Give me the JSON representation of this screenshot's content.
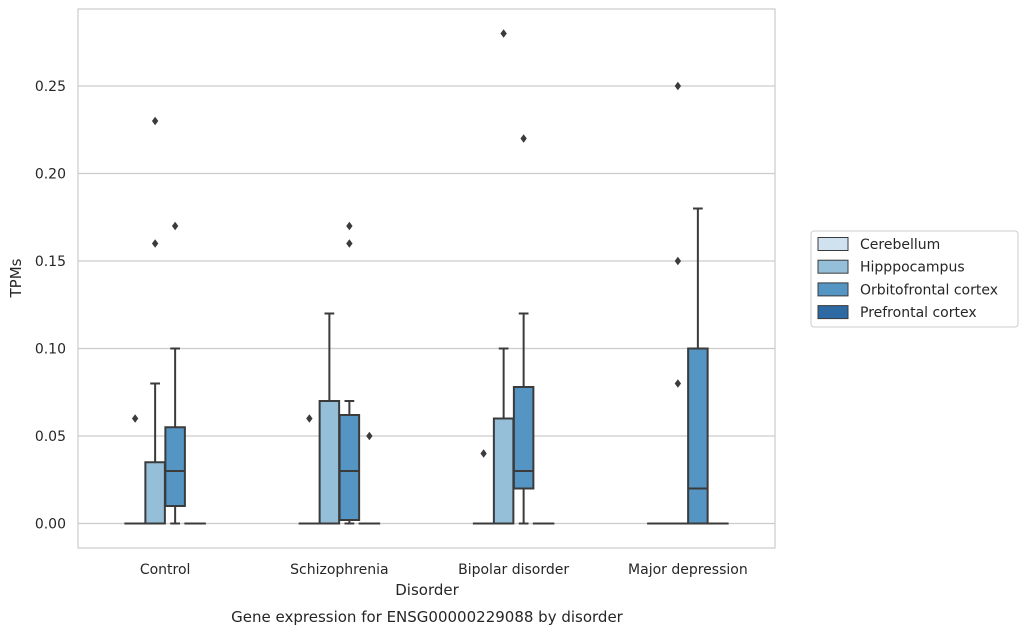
{
  "chart_data": {
    "type": "box",
    "xlabel": "Disorder",
    "ylabel": "TPMs",
    "caption": "Gene expression for ENSG00000229088 by disorder",
    "ylim": [
      -0.014,
      0.294
    ],
    "yticks": [
      0.0,
      0.05,
      0.1,
      0.15,
      0.2,
      0.25
    ],
    "ytick_labels": [
      "0.00",
      "0.05",
      "0.10",
      "0.15",
      "0.20",
      "0.25"
    ],
    "grid": "horizontal",
    "legend_position": "right",
    "categories": [
      "Control",
      "Schizophrenia",
      "Bipolar disorder",
      "Major depression"
    ],
    "series": [
      {
        "name": "Cerebellum",
        "color": "#d0e1f0",
        "boxes": [
          {
            "category": "Control",
            "whisker_low": 0,
            "q1": 0,
            "median": 0,
            "q3": 0,
            "whisker_high": 0,
            "outliers": [
              0.06
            ]
          },
          {
            "category": "Schizophrenia",
            "whisker_low": 0,
            "q1": 0,
            "median": 0,
            "q3": 0,
            "whisker_high": 0,
            "outliers": [
              0.06
            ]
          },
          {
            "category": "Bipolar disorder",
            "whisker_low": 0,
            "q1": 0,
            "median": 0,
            "q3": 0,
            "whisker_high": 0,
            "outliers": [
              0.04
            ]
          },
          {
            "category": "Major depression",
            "whisker_low": 0,
            "q1": 0,
            "median": 0,
            "q3": 0,
            "whisker_high": 0,
            "outliers": []
          }
        ]
      },
      {
        "name": "Hipppocampus",
        "color": "#95bfd9",
        "boxes": [
          {
            "category": "Control",
            "whisker_low": 0,
            "q1": 0,
            "median": 0,
            "q3": 0.035,
            "whisker_high": 0.08,
            "outliers": [
              0.16,
              0.23
            ]
          },
          {
            "category": "Schizophrenia",
            "whisker_low": 0,
            "q1": 0,
            "median": 0,
            "q3": 0.07,
            "whisker_high": 0.12,
            "outliers": []
          },
          {
            "category": "Bipolar disorder",
            "whisker_low": 0,
            "q1": 0,
            "median": 0,
            "q3": 0.06,
            "whisker_high": 0.1,
            "outliers": [
              0.28
            ]
          },
          {
            "category": "Major depression",
            "whisker_low": 0,
            "q1": 0,
            "median": 0,
            "q3": 0,
            "whisker_high": 0,
            "outliers": [
              0.08,
              0.15,
              0.25
            ]
          }
        ]
      },
      {
        "name": "Orbitofrontal cortex",
        "color": "#5495c4",
        "boxes": [
          {
            "category": "Control",
            "whisker_low": 0,
            "q1": 0.01,
            "median": 0.03,
            "q3": 0.055,
            "whisker_high": 0.1,
            "outliers": [
              0.17
            ]
          },
          {
            "category": "Schizophrenia",
            "whisker_low": 0,
            "q1": 0.002,
            "median": 0.03,
            "q3": 0.062,
            "whisker_high": 0.07,
            "outliers": [
              0.16,
              0.17
            ]
          },
          {
            "category": "Bipolar disorder",
            "whisker_low": 0,
            "q1": 0.02,
            "median": 0.03,
            "q3": 0.078,
            "whisker_high": 0.12,
            "outliers": [
              0.22
            ]
          },
          {
            "category": "Major depression",
            "whisker_low": 0,
            "q1": 0,
            "median": 0.02,
            "q3": 0.1,
            "whisker_high": 0.18,
            "outliers": []
          }
        ]
      },
      {
        "name": "Prefrontal cortex",
        "color": "#2d6aa3",
        "boxes": [
          {
            "category": "Control",
            "whisker_low": 0,
            "q1": 0,
            "median": 0,
            "q3": 0,
            "whisker_high": 0,
            "outliers": []
          },
          {
            "category": "Schizophrenia",
            "whisker_low": 0,
            "q1": 0,
            "median": 0,
            "q3": 0,
            "whisker_high": 0,
            "outliers": [
              0.05
            ]
          },
          {
            "category": "Bipolar disorder",
            "whisker_low": 0,
            "q1": 0,
            "median": 0,
            "q3": 0,
            "whisker_high": 0,
            "outliers": []
          },
          {
            "category": "Major depression",
            "whisker_low": 0,
            "q1": 0,
            "median": 0,
            "q3": 0,
            "whisker_high": 0,
            "outliers": []
          }
        ]
      }
    ]
  }
}
